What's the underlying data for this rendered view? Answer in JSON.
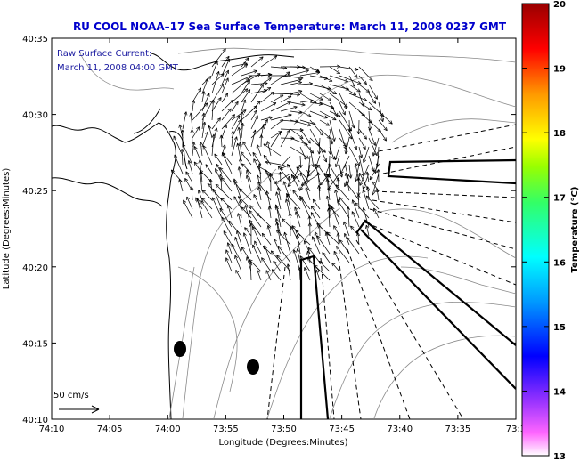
{
  "title": "RU COOL  NOAA–17  Sea Surface Temperature:  March 11, 2008 0237 GMT",
  "annotations": {
    "line1": "Raw Surface Current:",
    "line2": "March 11, 2008 04:00 GMT"
  },
  "scale_label": "50 cm/s",
  "axes": {
    "xlabel": "Longitude (Degrees:Minutes)",
    "ylabel": "Latitude (Degrees:Minutes)",
    "xticks": [
      "74:10",
      "74:05",
      "74:00",
      "73:55",
      "73:50",
      "73:45",
      "73:40",
      "73:35",
      "73:3"
    ],
    "yticks": [
      "40:35",
      "40:30",
      "40:25",
      "40:20",
      "40:15",
      "40:10"
    ]
  },
  "colorbar": {
    "label": "Temperature (°C)",
    "ticks": [
      "20",
      "19",
      "18",
      "17",
      "16",
      "15",
      "14",
      "13"
    ],
    "range": [
      13,
      20
    ]
  },
  "colors": {
    "title": "#0000cc",
    "annotation": "#1a1aa0",
    "axis": "#000000",
    "contour": "#8a8a8a"
  }
}
